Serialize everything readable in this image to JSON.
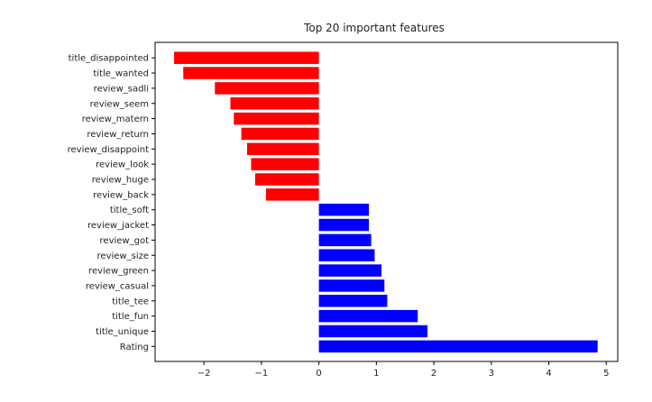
{
  "chart_data": {
    "type": "bar",
    "orientation": "horizontal",
    "title": "Top 20 important features",
    "xlabel": "",
    "ylabel": "",
    "xlim": [
      -2.85,
      5.2
    ],
    "xticks": [
      -2,
      -1,
      0,
      1,
      2,
      3,
      4,
      5
    ],
    "xtick_labels": [
      "−2",
      "−1",
      "0",
      "1",
      "2",
      "3",
      "4",
      "5"
    ],
    "grid": false,
    "legend": "none",
    "colors": {
      "negative": "#ff0000",
      "positive": "#0000ff",
      "axis": "#000000",
      "background": "#ffffff"
    },
    "categories": [
      "title_disappointed",
      "title_wanted",
      "review_sadli",
      "review_seem",
      "review_matern",
      "review_return",
      "review_disappoint",
      "review_look",
      "review_huge",
      "review_back",
      "title_soft",
      "review_jacket",
      "review_got",
      "review_size",
      "review_green",
      "review_casual",
      "title_tee",
      "title_fun",
      "title_unique",
      "Rating"
    ],
    "values": [
      -2.52,
      -2.36,
      -1.81,
      -1.54,
      -1.48,
      -1.35,
      -1.25,
      -1.18,
      -1.11,
      -0.92,
      0.87,
      0.87,
      0.91,
      0.97,
      1.09,
      1.14,
      1.19,
      1.72,
      1.89,
      4.85
    ]
  }
}
